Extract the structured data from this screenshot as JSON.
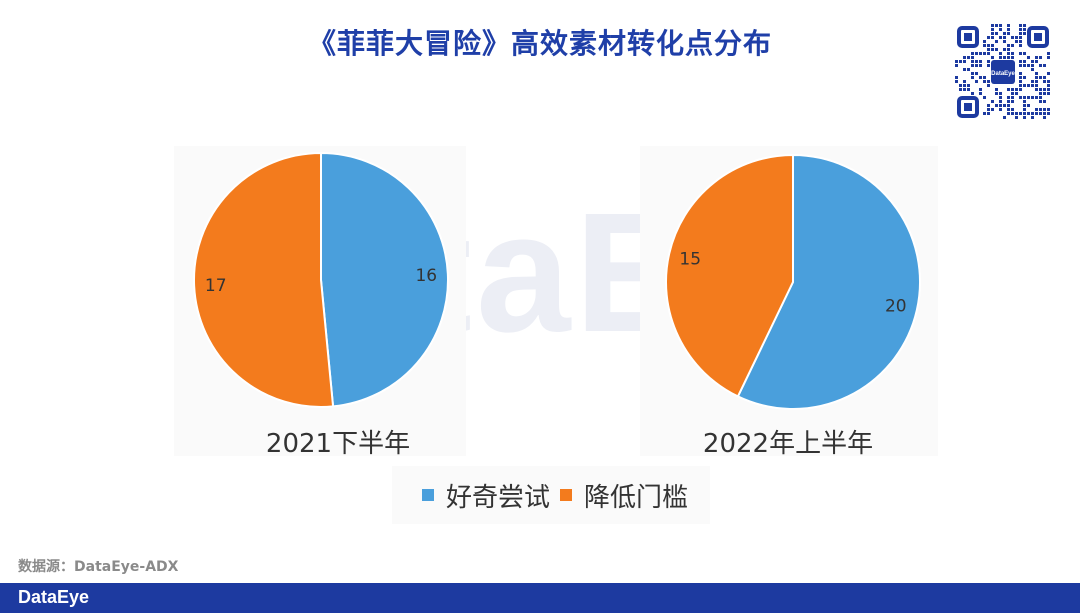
{
  "title": "《菲菲大冒险》高效素材转化点分布",
  "watermark_text": "DataEye",
  "qr_logo_text": "DataEye",
  "source": "数据源：DataEye-ADX",
  "footer_logo": "DataEye",
  "colors": {
    "blue": "#4a9fdc",
    "orange": "#f37b1d",
    "title": "#1f3fa8",
    "footer": "#1d3aa0"
  },
  "legend": [
    {
      "label": "好奇尝试",
      "color": "#4a9fdc"
    },
    {
      "label": "降低门槛",
      "color": "#f37b1d"
    }
  ],
  "chart_data": [
    {
      "type": "pie",
      "title": "2021下半年",
      "categories": [
        "好奇尝试",
        "降低门槛"
      ],
      "values": [
        16,
        17
      ],
      "colors": [
        "#4a9fdc",
        "#f37b1d"
      ],
      "start": "12 o'clock",
      "direction": "clockwise"
    },
    {
      "type": "pie",
      "title": "2022年上半年",
      "categories": [
        "好奇尝试",
        "降低门槛"
      ],
      "values": [
        20,
        15
      ],
      "colors": [
        "#4a9fdc",
        "#f37b1d"
      ],
      "start": "12 o'clock",
      "direction": "clockwise"
    }
  ]
}
